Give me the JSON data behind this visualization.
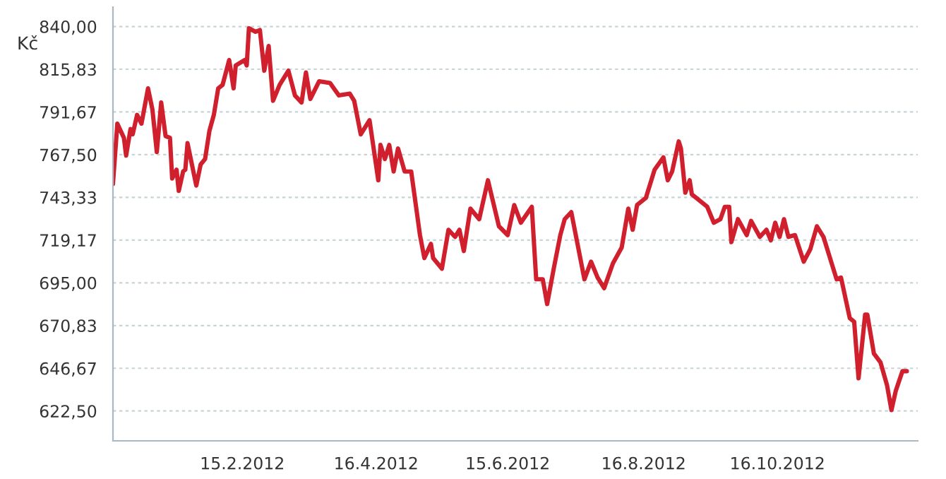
{
  "chart_data": {
    "type": "line",
    "ylabel": "Kč",
    "x": [
      "2011-12-18",
      "2011-12-20",
      "2011-12-23",
      "2011-12-24",
      "2011-12-26",
      "2011-12-27",
      "2011-12-29",
      "2011-12-31",
      "2012-01-03",
      "2012-01-05",
      "2012-01-07",
      "2012-01-09",
      "2012-01-11",
      "2012-01-13",
      "2012-01-14",
      "2012-01-16",
      "2012-01-17",
      "2012-01-19",
      "2012-01-20",
      "2012-01-21",
      "2012-01-25",
      "2012-01-27",
      "2012-01-29",
      "2012-01-31",
      "2012-02-02",
      "2012-02-04",
      "2012-02-06",
      "2012-02-09",
      "2012-02-11",
      "2012-02-12",
      "2012-02-16",
      "2012-02-17",
      "2012-02-18",
      "2012-02-21",
      "2012-02-23",
      "2012-02-25",
      "2012-02-27",
      "2012-02-29",
      "2012-03-03",
      "2012-03-07",
      "2012-03-10",
      "2012-03-13",
      "2012-03-15",
      "2012-03-17",
      "2012-03-21",
      "2012-03-26",
      "2012-03-30",
      "2012-04-04",
      "2012-04-06",
      "2012-04-09",
      "2012-04-13",
      "2012-04-17",
      "2012-04-18",
      "2012-04-20",
      "2012-04-22",
      "2012-04-24",
      "2012-04-26",
      "2012-04-29",
      "2012-05-02",
      "2012-05-06",
      "2012-05-08",
      "2012-05-11",
      "2012-05-12",
      "2012-05-16",
      "2012-05-19",
      "2012-05-22",
      "2012-05-24",
      "2012-05-26",
      "2012-05-29",
      "2012-06-02",
      "2012-06-06",
      "2012-06-11",
      "2012-06-15",
      "2012-06-18",
      "2012-06-21",
      "2012-06-26",
      "2012-06-28",
      "2012-07-01",
      "2012-07-03",
      "2012-07-06",
      "2012-07-09",
      "2012-07-11",
      "2012-07-14",
      "2012-07-20",
      "2012-07-23",
      "2012-07-26",
      "2012-07-29",
      "2012-08-02",
      "2012-08-06",
      "2012-08-09",
      "2012-08-11",
      "2012-08-13",
      "2012-08-17",
      "2012-08-21",
      "2012-08-25",
      "2012-08-27",
      "2012-08-29",
      "2012-09-01",
      "2012-09-02",
      "2012-09-04",
      "2012-09-06",
      "2012-09-07",
      "2012-09-10",
      "2012-09-14",
      "2012-09-17",
      "2012-09-20",
      "2012-09-22",
      "2012-09-24",
      "2012-09-25",
      "2012-09-28",
      "2012-10-02",
      "2012-10-04",
      "2012-10-08",
      "2012-10-11",
      "2012-10-13",
      "2012-10-15",
      "2012-10-17",
      "2012-10-19",
      "2012-10-21",
      "2012-10-24",
      "2012-10-28",
      "2012-10-31",
      "2012-11-03",
      "2012-11-06",
      "2012-11-09",
      "2012-11-12",
      "2012-11-14",
      "2012-11-18",
      "2012-11-20",
      "2012-11-22",
      "2012-11-25",
      "2012-11-26",
      "2012-11-29",
      "2012-12-02",
      "2012-12-05",
      "2012-12-07",
      "2012-12-09",
      "2012-12-12",
      "2012-12-14"
    ],
    "series": [
      {
        "color": "#d0202e",
        "values": [
          751,
          785,
          777,
          767,
          782,
          779,
          790,
          785,
          805,
          793,
          769,
          797,
          778,
          777,
          754,
          759,
          747,
          758,
          759,
          774,
          750,
          762,
          765,
          781,
          790,
          805,
          807,
          821,
          805,
          818,
          821,
          818,
          839,
          837,
          838,
          815,
          829,
          798,
          807,
          815,
          801,
          797,
          814,
          799,
          809,
          808,
          801,
          802,
          798,
          779,
          787,
          753,
          773,
          765,
          773,
          758,
          771,
          758,
          758,
          722,
          709,
          717,
          709,
          703,
          725,
          721,
          725,
          713,
          737,
          731,
          753,
          727,
          722,
          739,
          729,
          738,
          697,
          697,
          683,
          703,
          722,
          731,
          735,
          697,
          707,
          698,
          692,
          706,
          715,
          737,
          725,
          739,
          743,
          759,
          766,
          753,
          758,
          775,
          771,
          746,
          753,
          745,
          742,
          738,
          729,
          731,
          738,
          738,
          718,
          731,
          722,
          730,
          721,
          725,
          719,
          729,
          721,
          731,
          721,
          722,
          707,
          714,
          727,
          721,
          709,
          697,
          698,
          675,
          673,
          641,
          677,
          677,
          655,
          650,
          637,
          623,
          634,
          645,
          645
        ]
      }
    ],
    "xlim": [
      "2011-12-18",
      "2012-12-19"
    ],
    "ylim": [
      605.6,
      851
    ],
    "xticks": [
      {
        "value": "2012-02-15",
        "label": "15.2.2012"
      },
      {
        "value": "2012-04-16",
        "label": "16.4.2012"
      },
      {
        "value": "2012-06-15",
        "label": "15.6.2012"
      },
      {
        "value": "2012-08-16",
        "label": "16.8.2012"
      },
      {
        "value": "2012-10-16",
        "label": "16.10.2012"
      }
    ],
    "yticks": [
      {
        "value": 622.5,
        "label": "622,50"
      },
      {
        "value": 646.67,
        "label": "646,67"
      },
      {
        "value": 670.83,
        "label": "670,83"
      },
      {
        "value": 695,
        "label": "695,00"
      },
      {
        "value": 719.17,
        "label": "719,17"
      },
      {
        "value": 743.33,
        "label": "743,33"
      },
      {
        "value": 767.5,
        "label": "767,50"
      },
      {
        "value": 791.67,
        "label": "791,67"
      },
      {
        "value": 815.83,
        "label": "815,83"
      },
      {
        "value": 840,
        "label": "840,00"
      }
    ],
    "grid": "y",
    "legend": false,
    "line_style": "solid",
    "marker": "none"
  }
}
